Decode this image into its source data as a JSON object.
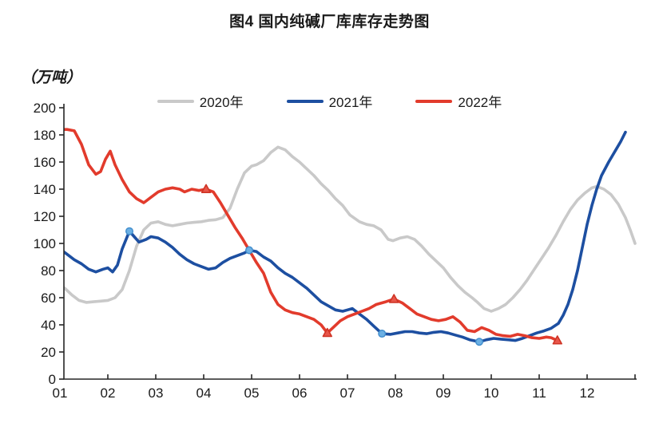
{
  "title": "图4 国内纯碱厂库库存走势图",
  "unit_label": "（万吨）",
  "colors": {
    "background": "#ffffff",
    "axis": "#262626",
    "text": "#1a1a1a",
    "series_2020": "#c9c9c9",
    "series_2021": "#1d4fa1",
    "series_2022": "#e23b2c",
    "marker_2021_fill": "#6cb0e4",
    "marker_2021_stroke": "#3f8ccc",
    "marker_2022_fill": "#e8564a",
    "marker_2022_stroke": "#cf3425"
  },
  "chart_data": {
    "type": "line",
    "title": "图4 国内纯碱厂库库存走势图",
    "ylabel": "（万吨）",
    "xlabel": "",
    "x_unit": "month",
    "ylim": [
      0,
      200
    ],
    "y_ticks": [
      0,
      20,
      40,
      60,
      80,
      100,
      120,
      140,
      160,
      180,
      200
    ],
    "x_tick_labels": [
      "01",
      "02",
      "03",
      "04",
      "05",
      "06",
      "07",
      "08",
      "09",
      "10",
      "11",
      "12"
    ],
    "x_range": [
      1,
      13.05
    ],
    "grid": false,
    "legend_position": "top-center",
    "series": [
      {
        "name": "2020年",
        "color": "#c9c9c9",
        "marker": "none",
        "points": [
          [
            1.0,
            69
          ],
          [
            1.1,
            67
          ],
          [
            1.25,
            62
          ],
          [
            1.4,
            58
          ],
          [
            1.55,
            56.5
          ],
          [
            1.7,
            57
          ],
          [
            1.85,
            57.5
          ],
          [
            2.0,
            58
          ],
          [
            2.15,
            60
          ],
          [
            2.3,
            66
          ],
          [
            2.45,
            80
          ],
          [
            2.6,
            98
          ],
          [
            2.75,
            110
          ],
          [
            2.9,
            115
          ],
          [
            3.05,
            116
          ],
          [
            3.2,
            114
          ],
          [
            3.35,
            113
          ],
          [
            3.5,
            114
          ],
          [
            3.65,
            115
          ],
          [
            3.8,
            115.5
          ],
          [
            3.95,
            116
          ],
          [
            4.1,
            117
          ],
          [
            4.25,
            117.5
          ],
          [
            4.4,
            119
          ],
          [
            4.55,
            126
          ],
          [
            4.7,
            140
          ],
          [
            4.85,
            152
          ],
          [
            5.0,
            157
          ],
          [
            5.1,
            158
          ],
          [
            5.25,
            161
          ],
          [
            5.4,
            167
          ],
          [
            5.55,
            171
          ],
          [
            5.7,
            169
          ],
          [
            5.85,
            164
          ],
          [
            6.0,
            160
          ],
          [
            6.15,
            155
          ],
          [
            6.3,
            150
          ],
          [
            6.45,
            144
          ],
          [
            6.6,
            139
          ],
          [
            6.75,
            133
          ],
          [
            6.9,
            128
          ],
          [
            7.05,
            121
          ],
          [
            7.25,
            116
          ],
          [
            7.4,
            114
          ],
          [
            7.55,
            113
          ],
          [
            7.7,
            110
          ],
          [
            7.85,
            103
          ],
          [
            7.95,
            102
          ],
          [
            8.1,
            104
          ],
          [
            8.25,
            105
          ],
          [
            8.4,
            103
          ],
          [
            8.55,
            98
          ],
          [
            8.7,
            92
          ],
          [
            8.85,
            87
          ],
          [
            9.0,
            82
          ],
          [
            9.15,
            75
          ],
          [
            9.3,
            69
          ],
          [
            9.45,
            64
          ],
          [
            9.6,
            60
          ],
          [
            9.7,
            57
          ],
          [
            9.85,
            52
          ],
          [
            10.0,
            50
          ],
          [
            10.15,
            52
          ],
          [
            10.3,
            55
          ],
          [
            10.45,
            60
          ],
          [
            10.6,
            66
          ],
          [
            10.75,
            73
          ],
          [
            10.9,
            81
          ],
          [
            11.05,
            89
          ],
          [
            11.2,
            97
          ],
          [
            11.35,
            106
          ],
          [
            11.5,
            116
          ],
          [
            11.65,
            125
          ],
          [
            11.8,
            132
          ],
          [
            11.95,
            137
          ],
          [
            12.1,
            141
          ],
          [
            12.2,
            142
          ],
          [
            12.35,
            140
          ],
          [
            12.5,
            136
          ],
          [
            12.65,
            129
          ],
          [
            12.8,
            119
          ],
          [
            12.9,
            110
          ],
          [
            13.0,
            100
          ]
        ],
        "markers": []
      },
      {
        "name": "2021年",
        "color": "#1d4fa1",
        "marker": "circle",
        "points": [
          [
            1.0,
            96
          ],
          [
            1.15,
            92
          ],
          [
            1.3,
            88
          ],
          [
            1.45,
            85
          ],
          [
            1.6,
            81
          ],
          [
            1.75,
            79
          ],
          [
            1.9,
            81
          ],
          [
            2.0,
            82
          ],
          [
            2.1,
            79
          ],
          [
            2.2,
            84
          ],
          [
            2.3,
            96
          ],
          [
            2.45,
            109
          ],
          [
            2.55,
            105
          ],
          [
            2.65,
            101
          ],
          [
            2.8,
            103
          ],
          [
            2.9,
            105
          ],
          [
            3.05,
            104
          ],
          [
            3.2,
            101
          ],
          [
            3.35,
            97
          ],
          [
            3.5,
            92
          ],
          [
            3.65,
            88
          ],
          [
            3.8,
            85
          ],
          [
            3.95,
            83
          ],
          [
            4.1,
            81
          ],
          [
            4.25,
            82
          ],
          [
            4.4,
            86
          ],
          [
            4.55,
            89
          ],
          [
            4.7,
            91
          ],
          [
            4.85,
            93
          ],
          [
            4.95,
            95
          ],
          [
            5.1,
            94
          ],
          [
            5.25,
            90
          ],
          [
            5.4,
            87
          ],
          [
            5.55,
            82
          ],
          [
            5.7,
            78
          ],
          [
            5.85,
            75
          ],
          [
            6.0,
            71
          ],
          [
            6.15,
            67
          ],
          [
            6.3,
            62
          ],
          [
            6.45,
            57
          ],
          [
            6.6,
            54
          ],
          [
            6.75,
            51
          ],
          [
            6.9,
            50
          ],
          [
            7.0,
            51
          ],
          [
            7.1,
            52
          ],
          [
            7.25,
            48
          ],
          [
            7.4,
            44
          ],
          [
            7.55,
            39
          ],
          [
            7.72,
            33.5
          ],
          [
            7.9,
            33
          ],
          [
            8.05,
            34
          ],
          [
            8.2,
            35
          ],
          [
            8.35,
            35
          ],
          [
            8.5,
            34
          ],
          [
            8.65,
            33.5
          ],
          [
            8.8,
            34.5
          ],
          [
            8.95,
            35
          ],
          [
            9.1,
            34
          ],
          [
            9.25,
            32.5
          ],
          [
            9.4,
            31
          ],
          [
            9.55,
            29
          ],
          [
            9.75,
            27.5
          ],
          [
            9.9,
            29
          ],
          [
            10.05,
            30
          ],
          [
            10.2,
            29.5
          ],
          [
            10.35,
            29
          ],
          [
            10.5,
            28.5
          ],
          [
            10.65,
            30
          ],
          [
            10.8,
            32
          ],
          [
            10.95,
            34
          ],
          [
            11.1,
            35.5
          ],
          [
            11.25,
            37.5
          ],
          [
            11.4,
            41
          ],
          [
            11.5,
            47
          ],
          [
            11.6,
            55
          ],
          [
            11.7,
            66
          ],
          [
            11.8,
            80
          ],
          [
            11.9,
            97
          ],
          [
            12.0,
            114
          ],
          [
            12.1,
            128
          ],
          [
            12.2,
            140
          ],
          [
            12.3,
            150
          ],
          [
            12.45,
            160
          ],
          [
            12.6,
            169
          ],
          [
            12.7,
            175
          ],
          [
            12.8,
            182
          ]
        ],
        "markers": [
          [
            2.45,
            109
          ],
          [
            4.95,
            95
          ],
          [
            7.72,
            33.5
          ],
          [
            9.75,
            27.5
          ]
        ]
      },
      {
        "name": "2022年",
        "color": "#e23b2c",
        "marker": "triangle",
        "points": [
          [
            1.0,
            184
          ],
          [
            1.15,
            184
          ],
          [
            1.3,
            183
          ],
          [
            1.45,
            173
          ],
          [
            1.6,
            158
          ],
          [
            1.75,
            151
          ],
          [
            1.85,
            153
          ],
          [
            1.95,
            162
          ],
          [
            2.05,
            168
          ],
          [
            2.15,
            158
          ],
          [
            2.3,
            147
          ],
          [
            2.45,
            138
          ],
          [
            2.6,
            133
          ],
          [
            2.75,
            130
          ],
          [
            2.9,
            134
          ],
          [
            3.05,
            138
          ],
          [
            3.2,
            140
          ],
          [
            3.35,
            141
          ],
          [
            3.5,
            140
          ],
          [
            3.6,
            138
          ],
          [
            3.75,
            140
          ],
          [
            3.9,
            139
          ],
          [
            4.05,
            140
          ],
          [
            4.2,
            138
          ],
          [
            4.35,
            130
          ],
          [
            4.5,
            121
          ],
          [
            4.65,
            112
          ],
          [
            4.8,
            104
          ],
          [
            4.95,
            95
          ],
          [
            5.1,
            86
          ],
          [
            5.25,
            78
          ],
          [
            5.4,
            64
          ],
          [
            5.55,
            55
          ],
          [
            5.7,
            51
          ],
          [
            5.85,
            49
          ],
          [
            6.0,
            48
          ],
          [
            6.15,
            46
          ],
          [
            6.3,
            44
          ],
          [
            6.45,
            40
          ],
          [
            6.58,
            34
          ],
          [
            6.7,
            38
          ],
          [
            6.85,
            43
          ],
          [
            7.0,
            46
          ],
          [
            7.15,
            48
          ],
          [
            7.3,
            50
          ],
          [
            7.45,
            52
          ],
          [
            7.6,
            55
          ],
          [
            7.8,
            57
          ],
          [
            7.97,
            59
          ],
          [
            8.15,
            56
          ],
          [
            8.3,
            52
          ],
          [
            8.45,
            48
          ],
          [
            8.6,
            46
          ],
          [
            8.75,
            44
          ],
          [
            8.9,
            43
          ],
          [
            9.05,
            44
          ],
          [
            9.2,
            46
          ],
          [
            9.35,
            42
          ],
          [
            9.5,
            36
          ],
          [
            9.65,
            35
          ],
          [
            9.8,
            38
          ],
          [
            9.95,
            36
          ],
          [
            10.1,
            33
          ],
          [
            10.25,
            32
          ],
          [
            10.4,
            31.5
          ],
          [
            10.55,
            33
          ],
          [
            10.7,
            32
          ],
          [
            10.85,
            30.5
          ],
          [
            11.0,
            30
          ],
          [
            11.15,
            31
          ],
          [
            11.25,
            30.5
          ],
          [
            11.38,
            28.5
          ]
        ],
        "markers": [
          [
            4.05,
            140
          ],
          [
            6.58,
            34
          ],
          [
            7.97,
            59
          ],
          [
            11.38,
            28.5
          ]
        ]
      }
    ]
  }
}
